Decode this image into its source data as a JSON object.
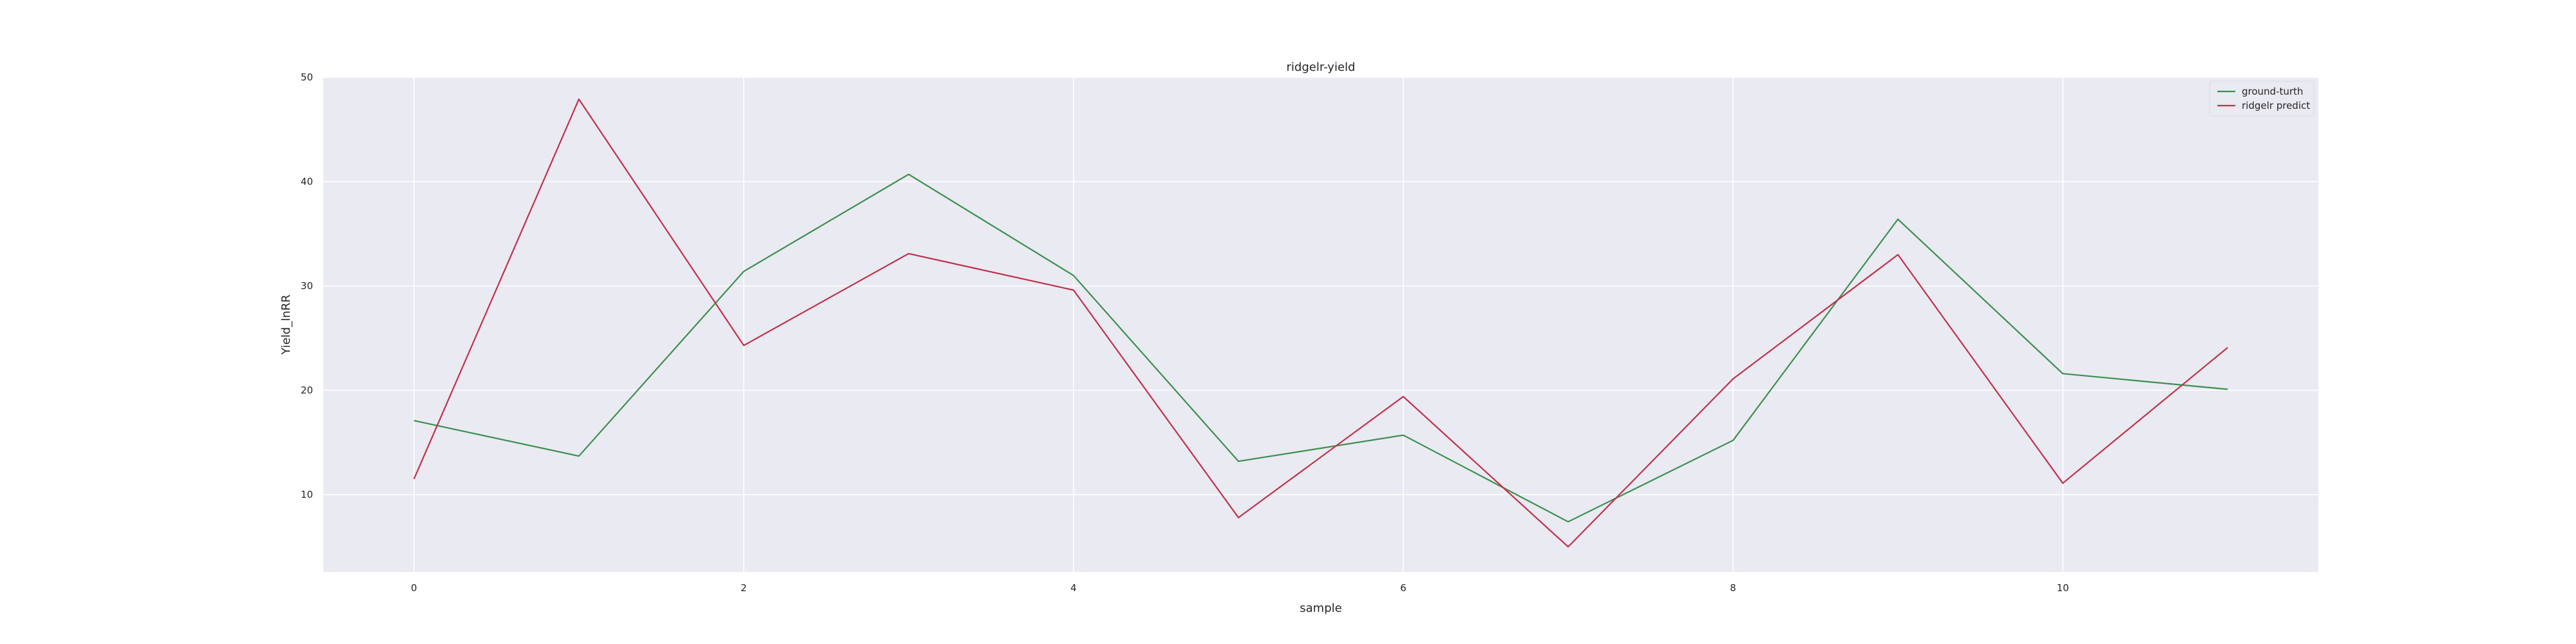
{
  "chart_data": {
    "type": "line",
    "title": "ridgelr-yield",
    "xlabel": "sample",
    "ylabel": "Yield_lnRR",
    "x": [
      0,
      1,
      2,
      3,
      4,
      5,
      6,
      7,
      8,
      9,
      10,
      11
    ],
    "xlim": [
      -0.55,
      11.55
    ],
    "ylim": [
      2.6,
      50
    ],
    "xticks": [
      "0",
      "2",
      "4",
      "6",
      "8",
      "10"
    ],
    "xtick_values": [
      0,
      2,
      4,
      6,
      8,
      10
    ],
    "yticks": [
      "10",
      "20",
      "30",
      "40",
      "50"
    ],
    "ytick_values": [
      10,
      20,
      30,
      40,
      50
    ],
    "grid": true,
    "legend_position": "top-right",
    "series": [
      {
        "name": "ground-turth",
        "color": "#3b8f4e",
        "values": [
          17.1,
          13.7,
          31.4,
          40.7,
          31.0,
          13.2,
          15.7,
          7.4,
          15.2,
          36.4,
          21.6,
          20.1
        ]
      },
      {
        "name": "ridgelr predict",
        "color": "#c0314a",
        "values": [
          11.5,
          47.9,
          24.3,
          33.1,
          29.6,
          7.8,
          19.4,
          5.0,
          21.1,
          33.0,
          11.1,
          24.1
        ]
      }
    ]
  }
}
